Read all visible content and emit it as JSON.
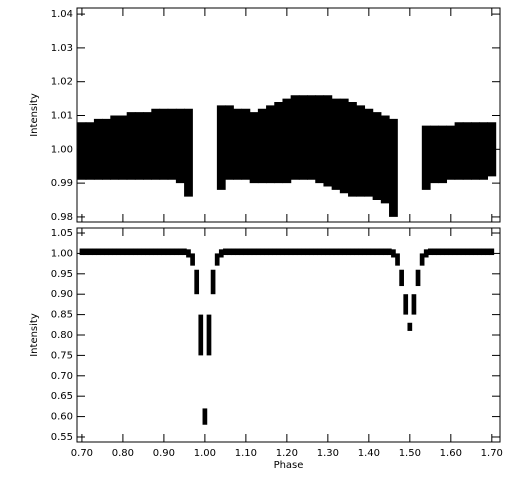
{
  "chart_data": [
    {
      "type": "band",
      "y_label": "Intensity",
      "x": [
        0.7,
        0.72,
        0.74,
        0.76,
        0.78,
        0.8,
        0.82,
        0.84,
        0.86,
        0.88,
        0.9,
        0.92,
        0.94,
        0.96,
        0.98,
        1.0,
        1.02,
        1.04,
        1.06,
        1.08,
        1.1,
        1.12,
        1.14,
        1.16,
        1.18,
        1.2,
        1.22,
        1.24,
        1.26,
        1.28,
        1.3,
        1.32,
        1.34,
        1.36,
        1.38,
        1.4,
        1.42,
        1.44,
        1.46,
        1.48,
        1.5,
        1.52,
        1.54,
        1.56,
        1.58,
        1.6,
        1.62,
        1.64,
        1.66,
        1.68,
        1.7
      ],
      "series": [
        {
          "color": "#000000",
          "values": [
            0.991,
            0.991,
            0.991,
            0.991,
            0.991,
            0.991,
            0.991,
            0.991,
            0.991,
            0.991,
            0.991,
            0.991,
            0.99,
            0.986,
            null,
            null,
            null,
            0.988,
            0.991,
            0.991,
            0.991,
            0.99,
            0.99,
            0.99,
            0.99,
            0.99,
            0.991,
            0.991,
            0.991,
            0.99,
            0.989,
            0.988,
            0.987,
            0.986,
            0.986,
            0.986,
            0.985,
            0.984,
            0.98,
            null,
            null,
            null,
            0.988,
            0.99,
            0.99,
            0.991,
            0.991,
            0.991,
            0.991,
            0.991,
            0.992
          ]
        },
        {
          "color": "#000000",
          "values": [
            1.008,
            1.008,
            1.009,
            1.009,
            1.01,
            1.01,
            1.011,
            1.011,
            1.011,
            1.012,
            1.012,
            1.012,
            1.012,
            1.012,
            null,
            null,
            null,
            1.013,
            1.013,
            1.012,
            1.012,
            1.011,
            1.012,
            1.013,
            1.014,
            1.015,
            1.016,
            1.016,
            1.016,
            1.016,
            1.016,
            1.015,
            1.015,
            1.014,
            1.013,
            1.012,
            1.011,
            1.01,
            1.009,
            null,
            null,
            null,
            1.007,
            1.007,
            1.007,
            1.007,
            1.008,
            1.008,
            1.008,
            1.008,
            1.008
          ]
        }
      ],
      "xlim": [
        0.688,
        1.72
      ],
      "ylim": [
        0.9785,
        1.0418
      ],
      "xticks": [
        0.7,
        0.8,
        0.9,
        1.0,
        1.1,
        1.2,
        1.3,
        1.4,
        1.5,
        1.6,
        1.7
      ],
      "yticks": [
        0.98,
        0.99,
        {
          "value": 1,
          "label": "1.00"
        },
        1.01,
        1.02,
        1.03,
        1.04
      ]
    },
    {
      "type": "band",
      "y_label": "Intensity",
      "x_label": "Phase",
      "x": [
        0.7,
        0.71,
        0.72,
        0.73,
        0.74,
        0.75,
        0.76,
        0.77,
        0.78,
        0.79,
        0.8,
        0.81,
        0.82,
        0.83,
        0.84,
        0.85,
        0.86,
        0.87,
        0.88,
        0.89,
        0.9,
        0.91,
        0.92,
        0.93,
        0.94,
        0.95,
        0.96,
        0.97,
        0.98,
        0.99,
        1.0,
        1.01,
        1.02,
        1.03,
        1.04,
        1.05,
        1.06,
        1.07,
        1.08,
        1.09,
        1.1,
        1.11,
        1.12,
        1.13,
        1.14,
        1.15,
        1.16,
        1.17,
        1.18,
        1.19,
        1.2,
        1.21,
        1.22,
        1.23,
        1.24,
        1.25,
        1.26,
        1.27,
        1.28,
        1.29,
        1.3,
        1.31,
        1.32,
        1.33,
        1.34,
        1.35,
        1.36,
        1.37,
        1.38,
        1.39,
        1.4,
        1.41,
        1.42,
        1.43,
        1.44,
        1.45,
        1.46,
        1.47,
        1.48,
        1.49,
        1.5,
        1.51,
        1.52,
        1.53,
        1.54,
        1.55,
        1.56,
        1.57,
        1.58,
        1.59,
        1.6,
        1.61,
        1.62,
        1.63,
        1.64,
        1.65,
        1.66,
        1.67,
        1.68,
        1.69,
        1.7
      ],
      "series": [
        {
          "color": "#000000",
          "values": [
            0.996,
            0.996,
            0.996,
            0.996,
            0.996,
            0.996,
            0.996,
            0.996,
            0.996,
            0.996,
            0.996,
            0.996,
            0.996,
            0.996,
            0.996,
            0.996,
            0.996,
            0.996,
            0.996,
            0.996,
            0.996,
            0.996,
            0.996,
            0.996,
            0.996,
            0.996,
            0.99,
            0.97,
            0.9,
            0.75,
            0.58,
            0.75,
            0.9,
            0.97,
            0.99,
            0.996,
            0.996,
            0.996,
            0.996,
            0.996,
            0.996,
            0.996,
            0.996,
            0.996,
            0.996,
            0.996,
            0.996,
            0.996,
            0.996,
            0.996,
            0.996,
            0.996,
            0.996,
            0.996,
            0.996,
            0.996,
            0.996,
            0.996,
            0.996,
            0.996,
            0.996,
            0.996,
            0.996,
            0.996,
            0.996,
            0.996,
            0.996,
            0.996,
            0.996,
            0.996,
            0.996,
            0.996,
            0.996,
            0.996,
            0.996,
            0.996,
            0.99,
            0.97,
            0.92,
            0.85,
            0.81,
            0.85,
            0.92,
            0.97,
            0.99,
            0.996,
            0.996,
            0.996,
            0.996,
            0.996,
            0.996,
            0.996,
            0.996,
            0.996,
            0.996,
            0.996,
            0.996,
            0.996,
            0.996,
            0.996,
            0.996
          ]
        },
        {
          "color": "#000000",
          "values": [
            1.012,
            1.012,
            1.012,
            1.012,
            1.012,
            1.012,
            1.012,
            1.012,
            1.012,
            1.012,
            1.012,
            1.012,
            1.012,
            1.012,
            1.012,
            1.012,
            1.012,
            1.012,
            1.012,
            1.012,
            1.012,
            1.012,
            1.012,
            1.012,
            1.012,
            1.012,
            1.01,
            1.0,
            0.96,
            0.85,
            0.62,
            0.85,
            0.96,
            1.0,
            1.01,
            1.012,
            1.012,
            1.012,
            1.012,
            1.012,
            1.012,
            1.012,
            1.012,
            1.012,
            1.012,
            1.012,
            1.012,
            1.012,
            1.012,
            1.012,
            1.012,
            1.012,
            1.012,
            1.012,
            1.012,
            1.012,
            1.012,
            1.012,
            1.012,
            1.012,
            1.012,
            1.012,
            1.012,
            1.012,
            1.012,
            1.012,
            1.012,
            1.012,
            1.012,
            1.012,
            1.012,
            1.012,
            1.012,
            1.012,
            1.012,
            1.012,
            1.01,
            1.0,
            0.96,
            0.9,
            0.83,
            0.9,
            0.96,
            1.0,
            1.01,
            1.012,
            1.012,
            1.012,
            1.012,
            1.012,
            1.012,
            1.012,
            1.012,
            1.012,
            1.012,
            1.012,
            1.012,
            1.012,
            1.012,
            1.012,
            1.012
          ]
        }
      ],
      "xlim": [
        0.688,
        1.72
      ],
      "ylim": [
        0.5377,
        1.0623
      ],
      "xticks": [
        {
          "value": 0.7,
          "label": "0.70"
        },
        {
          "value": 0.8,
          "label": "0.80"
        },
        {
          "value": 0.9,
          "label": "0.90"
        },
        {
          "value": 1,
          "label": "1.00"
        },
        {
          "value": 1.1,
          "label": "1.10"
        },
        {
          "value": 1.2,
          "label": "1.20"
        },
        {
          "value": 1.3,
          "label": "1.30"
        },
        {
          "value": 1.4,
          "label": "1.40"
        },
        {
          "value": 1.5,
          "label": "1.50"
        },
        {
          "value": 1.6,
          "label": "1.60"
        },
        {
          "value": 1.7,
          "label": "1.70"
        }
      ],
      "yticks": [
        0.55,
        {
          "value": 0.6,
          "label": "0.60"
        },
        0.65,
        {
          "value": 0.7,
          "label": "0.70"
        },
        0.75,
        {
          "value": 0.8,
          "label": "0.80"
        },
        0.85,
        {
          "value": 0.9,
          "label": "0.90"
        },
        0.95,
        {
          "value": 1,
          "label": "1.00"
        },
        1.05
      ]
    }
  ]
}
